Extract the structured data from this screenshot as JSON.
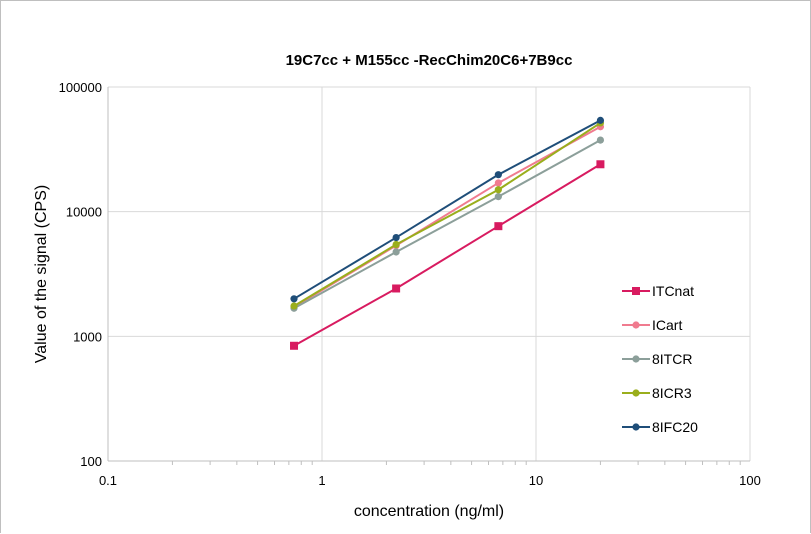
{
  "chart_data": {
    "type": "line",
    "title": "19C7cc + M155cc -RecChim20C6+7B9cc",
    "xlabel": "concentration (ng/ml)",
    "ylabel": "Value of the signal (CPS)",
    "x_scale": "log",
    "y_scale": "log",
    "xlim": [
      0.1,
      100
    ],
    "ylim": [
      100,
      100000
    ],
    "x_ticks": [
      "0.1",
      "1",
      "10",
      "100"
    ],
    "y_ticks": [
      "100",
      "1000",
      "10000",
      "100000"
    ],
    "grid": true,
    "legend_position": "right",
    "x": [
      0.74,
      2.22,
      6.67,
      20
    ],
    "series": [
      {
        "name": "ITCnat",
        "color": "#d81b60",
        "marker": "square",
        "values": [
          840,
          2420,
          7650,
          24000
        ]
      },
      {
        "name": "ICart",
        "color": "#f07b8f",
        "marker": "circle",
        "values": [
          1720,
          5350,
          17000,
          48000
        ]
      },
      {
        "name": "8ITCR",
        "color": "#8c9f9a",
        "marker": "circle",
        "values": [
          1680,
          4750,
          13200,
          37500
        ]
      },
      {
        "name": "8ICR3",
        "color": "#9aae1c",
        "marker": "circle",
        "values": [
          1750,
          5450,
          15000,
          51500
        ]
      },
      {
        "name": "8IFC20",
        "color": "#1f4e79",
        "marker": "circle",
        "values": [
          2000,
          6200,
          19800,
          54000
        ]
      }
    ]
  }
}
